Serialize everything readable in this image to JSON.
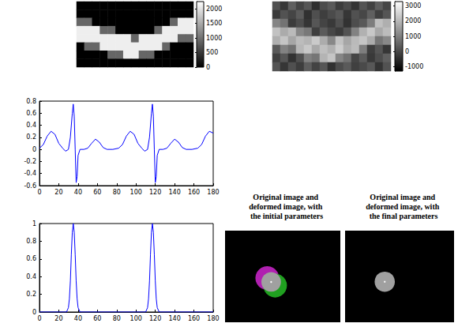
{
  "chart_data": [
    {
      "type": "heatmap",
      "tick_labels": false,
      "cells": [
        [
          0,
          0,
          0,
          0,
          0,
          0,
          0,
          0,
          0,
          0,
          0,
          0,
          0,
          0,
          0
        ],
        [
          0,
          0,
          0,
          0,
          0,
          0,
          0,
          0,
          0,
          0,
          0,
          0,
          0,
          0,
          0
        ],
        [
          900,
          900,
          0,
          0,
          0,
          0,
          0,
          0,
          0,
          0,
          0,
          0,
          900,
          2100,
          2100
        ],
        [
          2100,
          2100,
          2100,
          900,
          900,
          0,
          0,
          0,
          0,
          0,
          900,
          2100,
          2100,
          2100,
          2100
        ],
        [
          2100,
          2100,
          2100,
          2100,
          2100,
          2100,
          2100,
          900,
          2100,
          2100,
          2100,
          2100,
          2100,
          900,
          900
        ],
        [
          0,
          900,
          900,
          2100,
          2100,
          2100,
          2100,
          2100,
          2100,
          2100,
          2100,
          900,
          0,
          0,
          0
        ],
        [
          0,
          0,
          0,
          0,
          900,
          900,
          2100,
          2100,
          900,
          900,
          0,
          0,
          0,
          0,
          0
        ],
        [
          0,
          0,
          0,
          0,
          0,
          0,
          0,
          0,
          0,
          0,
          0,
          0,
          0,
          0,
          0
        ]
      ],
      "color_range": [
        0,
        2250
      ],
      "color_ticks": [
        0,
        500,
        1000,
        1500,
        2000
      ],
      "colors": [
        "#000000",
        "#ffffff"
      ]
    },
    {
      "type": "heatmap",
      "tick_labels": false,
      "cells": [
        [
          150,
          -300,
          420,
          -80,
          260,
          -450,
          90,
          310,
          -220,
          30,
          -360,
          200,
          -120,
          380,
          -40
        ],
        [
          -250,
          180,
          -60,
          340,
          -410,
          120,
          -190,
          50,
          270,
          -330,
          160,
          -20,
          440,
          -150,
          230
        ],
        [
          1100,
          780,
          -210,
          90,
          -340,
          260,
          -70,
          -280,
          150,
          -390,
          80,
          310,
          950,
          2150,
          1850
        ],
        [
          2200,
          1780,
          2050,
          1120,
          870,
          -160,
          330,
          -20,
          -240,
          190,
          1050,
          1900,
          2300,
          1750,
          2100
        ],
        [
          1850,
          2250,
          1700,
          2100,
          1950,
          2350,
          1800,
          1150,
          2200,
          1700,
          2050,
          2250,
          1800,
          820,
          1150
        ],
        [
          310,
          1050,
          760,
          2000,
          2300,
          1750,
          2150,
          1900,
          2400,
          1850,
          2100,
          980,
          -180,
          240,
          -330
        ],
        [
          -140,
          260,
          -390,
          120,
          1020,
          830,
          1950,
          2250,
          1100,
          760,
          -60,
          350,
          -270,
          90,
          410
        ],
        [
          220,
          -330,
          140,
          -200,
          380,
          -90,
          260,
          -410,
          70,
          320,
          -150,
          40,
          290,
          -360,
          180
        ]
      ],
      "color_range": [
        -1300,
        3300
      ],
      "color_ticks": [
        -1000,
        0,
        1000,
        2000,
        3000
      ],
      "colors": [
        "#000000",
        "#ffffff"
      ]
    },
    {
      "type": "line",
      "color": "#0000ff",
      "grid": false,
      "x": [
        0,
        4,
        8,
        12,
        16,
        20,
        24,
        27,
        30,
        32,
        34,
        35,
        36,
        37,
        38,
        39,
        40,
        42,
        46,
        50,
        54,
        58,
        62,
        66,
        70,
        76,
        82,
        86,
        90,
        94,
        98,
        102,
        106,
        109,
        112,
        114,
        116,
        117,
        118,
        119,
        120,
        121,
        122,
        124,
        128,
        132,
        136,
        140,
        144,
        148,
        152,
        158,
        164,
        168,
        172,
        176,
        180
      ],
      "values": [
        0.02,
        0.08,
        0.22,
        0.3,
        0.25,
        0.1,
        0.02,
        -0.03,
        0,
        0.2,
        0.6,
        0.75,
        0.55,
        0,
        -0.55,
        -0.45,
        -0.1,
        0,
        0,
        0.02,
        0.1,
        0.17,
        0.12,
        0.03,
        0,
        0,
        0.02,
        0.08,
        0.22,
        0.3,
        0.25,
        0.1,
        0.02,
        -0.03,
        0,
        0.2,
        0.6,
        0.75,
        0.55,
        0,
        -0.55,
        -0.45,
        -0.1,
        0,
        0,
        0.02,
        0.1,
        0.17,
        0.12,
        0.03,
        0,
        0,
        0.02,
        0.08,
        0.22,
        0.3,
        0.27
      ],
      "xlim": [
        0,
        180
      ],
      "xticks": [
        0,
        20,
        40,
        60,
        80,
        100,
        120,
        140,
        160,
        180
      ],
      "ylim": [
        -0.6,
        0.8
      ],
      "yticks": [
        -0.6,
        -0.4,
        -0.2,
        0,
        0.2,
        0.4,
        0.6,
        0.8
      ]
    },
    {
      "type": "line",
      "color": "#0000ff",
      "grid": false,
      "x": [
        0,
        28,
        30,
        31,
        32,
        33,
        34,
        35,
        36,
        37,
        38,
        39,
        40,
        42,
        110,
        112,
        113,
        114,
        115,
        116,
        117,
        118,
        119,
        120,
        121,
        122,
        124,
        180
      ],
      "values": [
        0,
        0,
        0.05,
        0.15,
        0.35,
        0.65,
        0.9,
        1,
        0.9,
        0.65,
        0.35,
        0.15,
        0.05,
        0,
        0,
        0.05,
        0.15,
        0.35,
        0.65,
        0.9,
        1,
        0.9,
        0.65,
        0.35,
        0.15,
        0.05,
        0,
        0
      ],
      "xlim": [
        0,
        180
      ],
      "xticks": [
        0,
        20,
        40,
        60,
        80,
        100,
        120,
        140,
        160,
        180
      ],
      "ylim": [
        0,
        1
      ],
      "yticks": [
        0,
        0.2,
        0.4,
        0.6,
        0.8,
        1
      ]
    },
    {
      "type": "image",
      "title": "Original image and deformed image, with the initial parameters",
      "tick_labels": false,
      "xlim": [
        0,
        100
      ],
      "ylim": [
        0,
        100
      ],
      "layers": [
        {
          "color": "#b020b0",
          "center": [
            36.6,
            48.3
          ],
          "radius": 10.3
        },
        {
          "color": "#20a020",
          "center": [
            43.4,
            40
          ],
          "radius": 10.3
        },
        {
          "color": "#a0a0a0",
          "center": [
            40,
            44
          ],
          "radius": 8.5
        },
        {
          "color": "#ffffff",
          "center": [
            40,
            44
          ],
          "radius": 0.8
        }
      ]
    },
    {
      "type": "image",
      "title": "Original image and deformed image, with the final parameters",
      "tick_labels": false,
      "xlim": [
        0,
        100
      ],
      "ylim": [
        0,
        100
      ],
      "layers": [
        {
          "color": "#a0a0a0",
          "center": [
            36.4,
            44.2
          ],
          "radius": 9.3
        },
        {
          "color": "#ffffff",
          "center": [
            36.4,
            44.2
          ],
          "radius": 0.8
        }
      ]
    }
  ]
}
